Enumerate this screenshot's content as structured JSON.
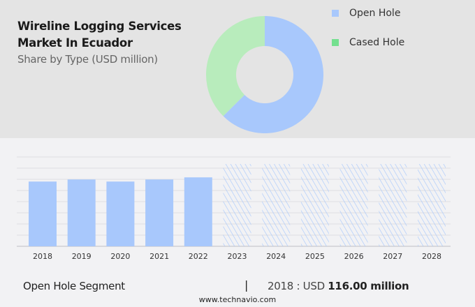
{
  "chart_data": [
    {
      "type": "pie",
      "subtype": "donut",
      "title": "Wireline Logging Services Market In Ecuador",
      "subtitle": "Share by Type (USD million)",
      "series": [
        {
          "name": "Open Hole",
          "value": 62.5,
          "color": "#a8c8fc"
        },
        {
          "name": "Cased Hole",
          "value": 37.5,
          "color": "#b8ecbc"
        }
      ],
      "legend_colors": [
        "#a8c8fc",
        "#74e08f"
      ],
      "legend": "top-right"
    },
    {
      "type": "bar",
      "categories": [
        "2018",
        "2019",
        "2020",
        "2021",
        "2022",
        "2023",
        "2024",
        "2025",
        "2026",
        "2027",
        "2028"
      ],
      "values": [
        116,
        119.7,
        116,
        119.7,
        123.5,
        null,
        null,
        null,
        null,
        null,
        null
      ],
      "forecast_categories": [
        "2023",
        "2024",
        "2025",
        "2026",
        "2027",
        "2028"
      ],
      "ylim": [
        0,
        160
      ],
      "grid": true,
      "color": "#a8c8fc"
    }
  ],
  "footer": {
    "segment": "Open Hole Segment",
    "separator": "|",
    "year_label": "2018 : USD ",
    "value": "116.00 million",
    "site": "www.technavio.com"
  }
}
